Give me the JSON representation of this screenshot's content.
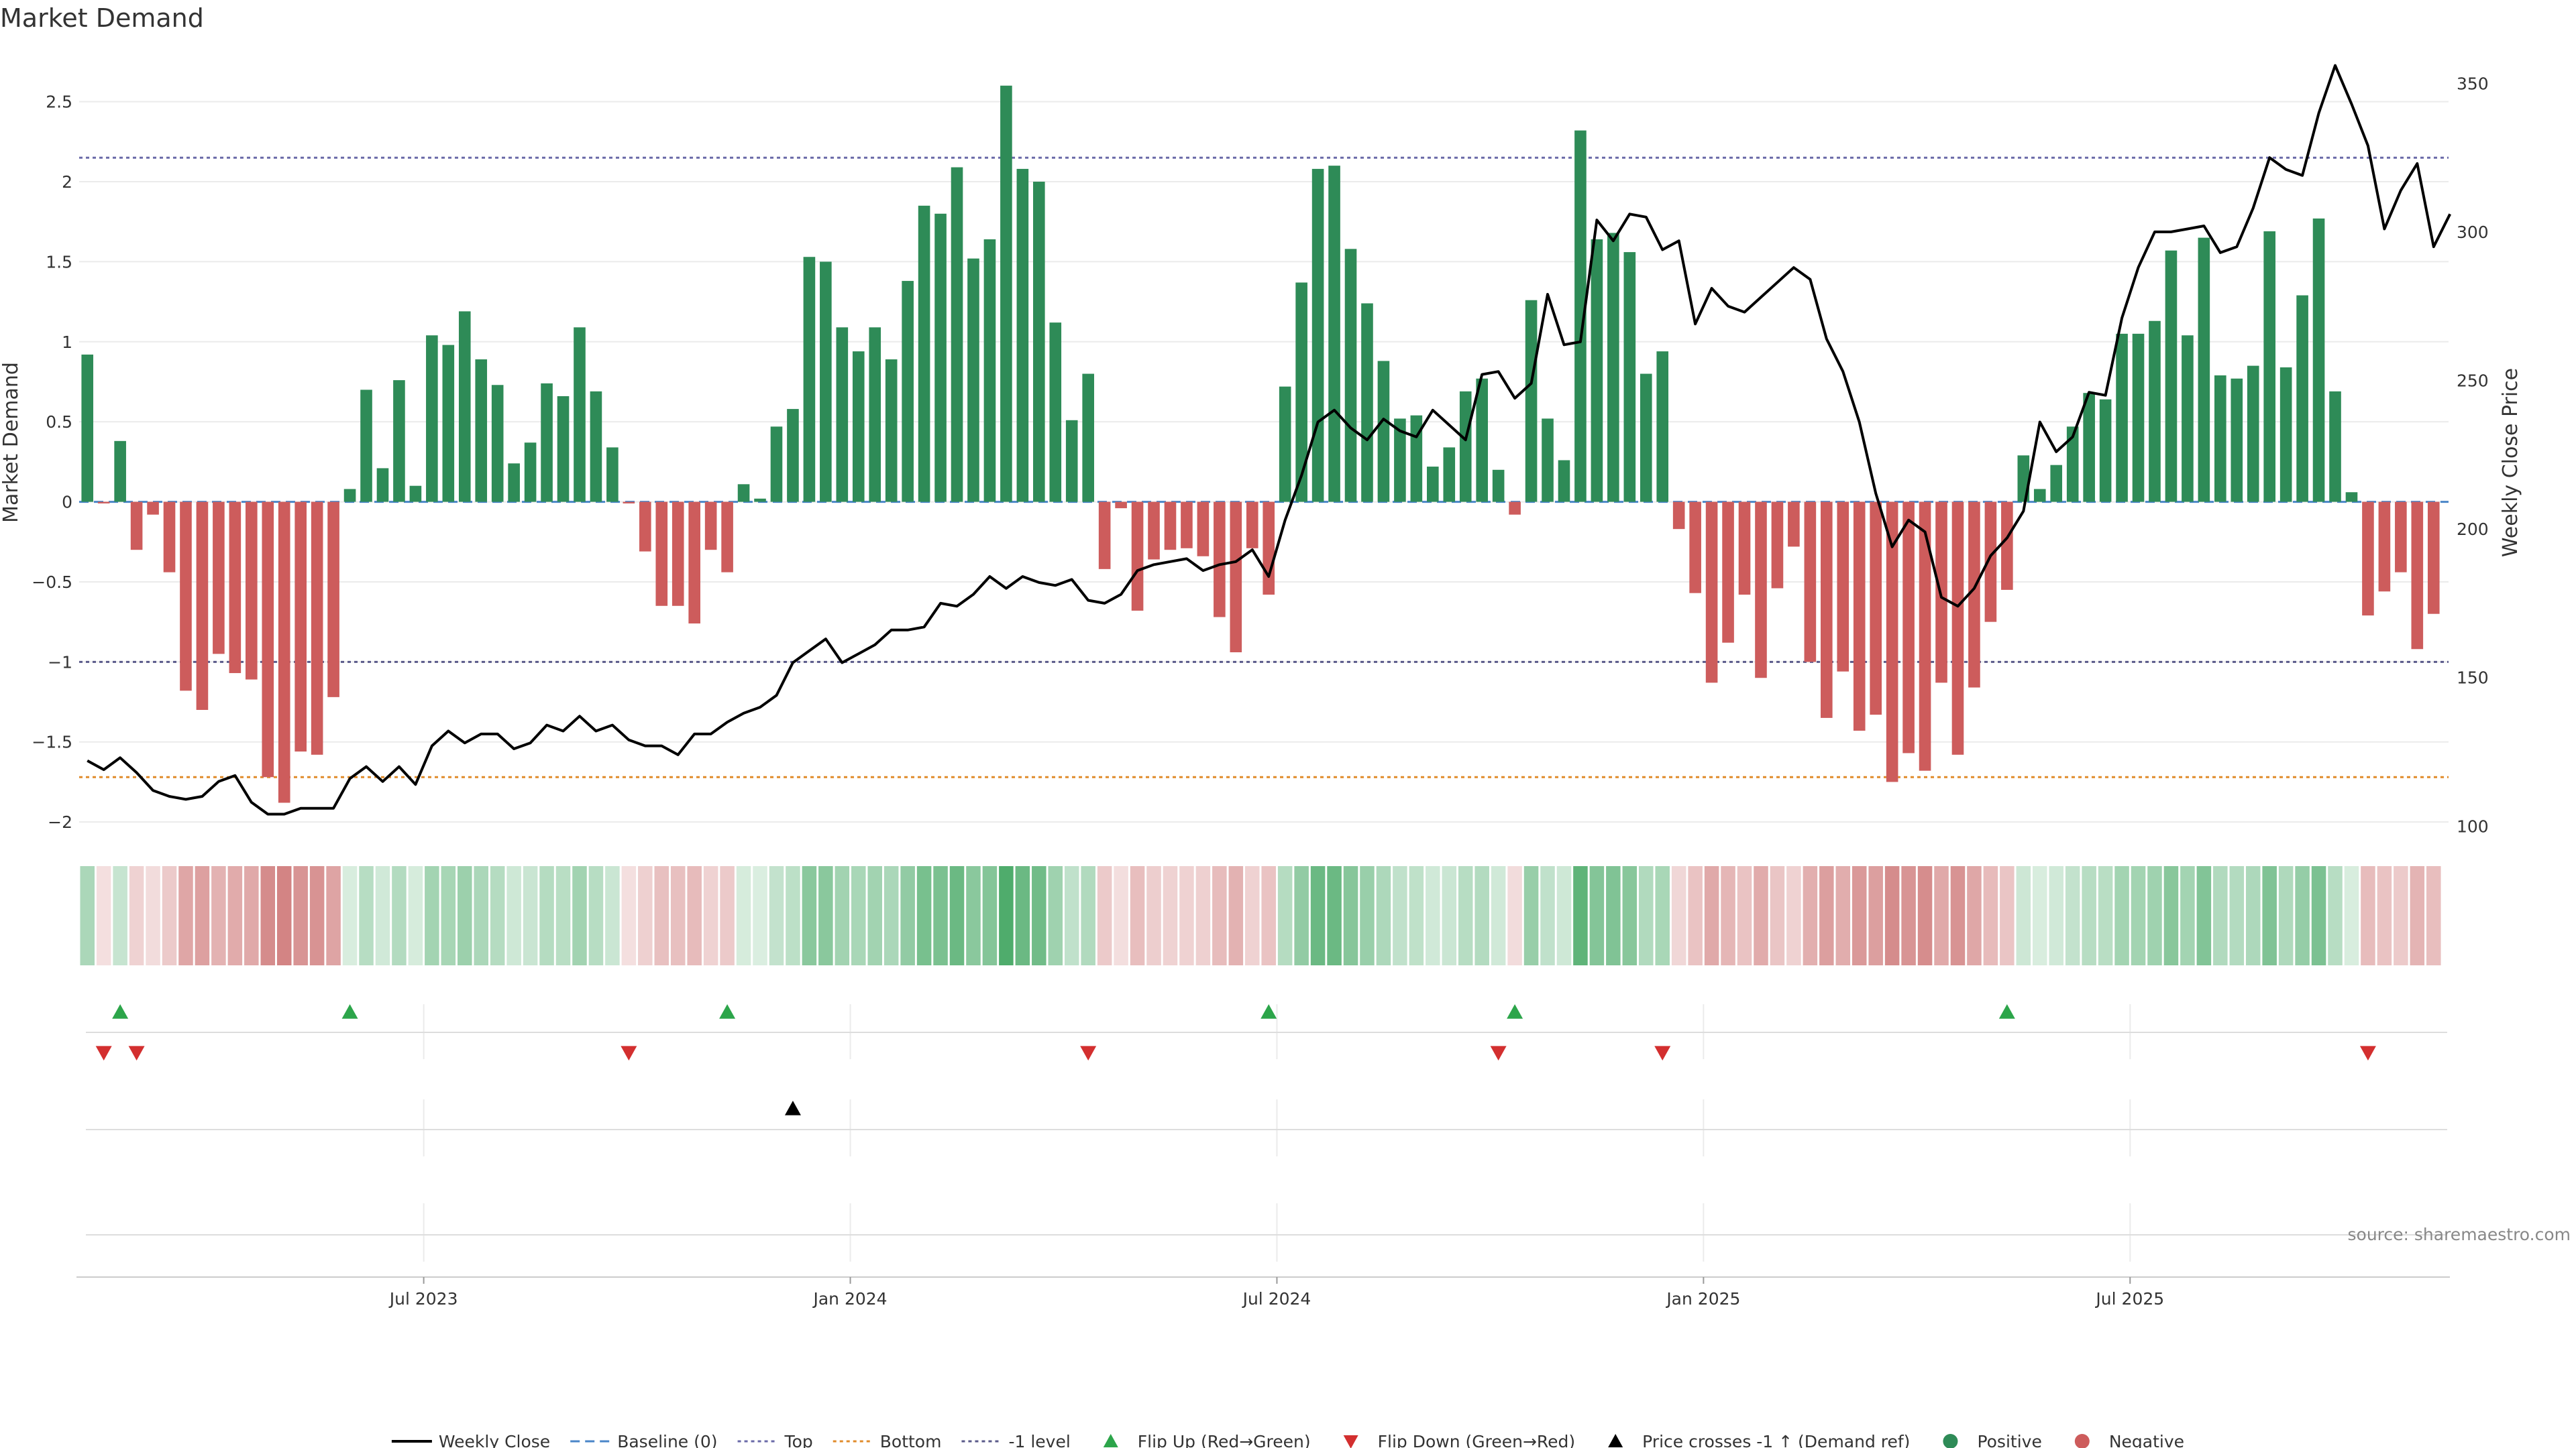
{
  "chart_data": {
    "type": "bar",
    "title": "Market Demand",
    "ylabel": "Market Demand",
    "y2label": "Weekly Close Price",
    "ylim": [
      -2.1,
      2.8
    ],
    "y2lim": [
      96,
      360
    ],
    "yticks": [
      2.5,
      2,
      1.5,
      1,
      0.5,
      0,
      -0.5,
      -1,
      -1.5,
      -2
    ],
    "yticklabels": [
      "2.5",
      "2",
      "1.5",
      "1",
      "0.5",
      "0",
      "−0.5",
      "−1",
      "−1.5",
      "−2"
    ],
    "y2ticks": [
      350,
      300,
      250,
      200,
      150,
      100
    ],
    "xticks": [
      {
        "index": 20.5,
        "label": "Jul 2023"
      },
      {
        "index": 46.5,
        "label": "Jan 2024"
      },
      {
        "index": 72.5,
        "label": "Jul 2024"
      },
      {
        "index": 98.5,
        "label": "Jan 2025"
      },
      {
        "index": 124.5,
        "label": "Jul 2025"
      }
    ],
    "reference_lines": {
      "top": 2.15,
      "bottom": -1.72,
      "minus_one": -1.0,
      "baseline": 0
    },
    "values": [
      0.92,
      -0.01,
      0.38,
      -0.3,
      -0.08,
      -0.44,
      -1.18,
      -1.3,
      -0.95,
      -1.07,
      -1.11,
      -1.72,
      -1.88,
      -1.56,
      -1.58,
      -1.22,
      0.08,
      0.7,
      0.21,
      0.76,
      0.1,
      1.04,
      0.98,
      1.19,
      0.89,
      0.73,
      0.24,
      0.37,
      0.74,
      0.66,
      1.09,
      0.69,
      0.34,
      -0.01,
      -0.31,
      -0.65,
      -0.65,
      -0.76,
      -0.3,
      -0.44,
      0.11,
      0.02,
      0.47,
      0.58,
      1.53,
      1.5,
      1.09,
      0.94,
      1.09,
      0.89,
      1.38,
      1.85,
      1.8,
      2.09,
      1.52,
      1.64,
      2.6,
      2.08,
      2.0,
      1.12,
      0.51,
      0.8,
      -0.42,
      -0.04,
      -0.68,
      -0.36,
      -0.3,
      -0.29,
      -0.34,
      -0.72,
      -0.94,
      -0.29,
      -0.58,
      0.72,
      1.37,
      2.08,
      2.1,
      1.58,
      1.24,
      0.88,
      0.52,
      0.54,
      0.22,
      0.34,
      0.69,
      0.77,
      0.2,
      -0.08,
      1.26,
      0.52,
      0.26,
      2.32,
      1.64,
      1.68,
      1.56,
      0.8,
      0.94,
      -0.17,
      -0.57,
      -1.13,
      -0.88,
      -0.58,
      -1.1,
      -0.54,
      -0.28,
      -1.0,
      -1.35,
      -1.06,
      -1.43,
      -1.33,
      -1.75,
      -1.57,
      -1.68,
      -1.13,
      -1.58,
      -1.16,
      -0.75,
      -0.55,
      0.29,
      0.08,
      0.23,
      0.47,
      0.68,
      0.64,
      1.05,
      1.05,
      1.13,
      1.57,
      1.04,
      1.65,
      0.79,
      0.77,
      0.85,
      1.69,
      0.84,
      1.29,
      1.77,
      0.69,
      0.06,
      -0.71,
      -0.56,
      -0.44,
      -0.92,
      -0.7
    ],
    "weekly_close": [
      122,
      119,
      123,
      118,
      112,
      110,
      109,
      110,
      115,
      117,
      108,
      104,
      104,
      106,
      106,
      106,
      116,
      120,
      115,
      120,
      114,
      127,
      132,
      128,
      131,
      131,
      126,
      128,
      134,
      132,
      137,
      132,
      134,
      129,
      127,
      127,
      124,
      131,
      131,
      135,
      138,
      140,
      144,
      155,
      159,
      163,
      155,
      158,
      161,
      166,
      166,
      167,
      175,
      174,
      178,
      184,
      180,
      184,
      182,
      181,
      183,
      176,
      175,
      178,
      186,
      188,
      189,
      190,
      186,
      188,
      189,
      193,
      184,
      203,
      218,
      236,
      240,
      234,
      230,
      237,
      233,
      231,
      240,
      235,
      230,
      252,
      253,
      244,
      249,
      279,
      262,
      263,
      304,
      297,
      306,
      305,
      294,
      297,
      269,
      281,
      275,
      273,
      278,
      283,
      288,
      284,
      264,
      253,
      236,
      212,
      194,
      203,
      199,
      177,
      174,
      180,
      191,
      197,
      206,
      236,
      226,
      231,
      246,
      245,
      271,
      288,
      300,
      300,
      301,
      302,
      293,
      295,
      308,
      325,
      321,
      319,
      340,
      356,
      343,
      329,
      301,
      314,
      323,
      295,
      306
    ],
    "flip_up_indices": [
      2,
      16,
      39,
      72,
      87,
      117
    ],
    "flip_down_indices": [
      1,
      3,
      33,
      61,
      86,
      96,
      139
    ],
    "cross_up_indices": [
      43
    ],
    "series": [
      {
        "name": "Weekly Close",
        "color": "#000000"
      },
      {
        "name": "Baseline (0)",
        "color": "#4a86c8"
      },
      {
        "name": "Top",
        "color": "#6a6aa8"
      },
      {
        "name": "Bottom",
        "color": "#e08c2c"
      },
      {
        "name": "-1 level",
        "color": "#5a5a8a"
      },
      {
        "name": "Flip Up (Red→Green)",
        "color": "#2ca54a"
      },
      {
        "name": "Flip Down (Green→Red)",
        "color": "#d32f2f"
      },
      {
        "name": "Price crosses -1 ↑ (Demand ref)",
        "color": "#000000"
      },
      {
        "name": "Positive",
        "color": "#2e8b57"
      },
      {
        "name": "Negative",
        "color": "#cd5c5c"
      }
    ]
  },
  "source": "source: sharemaestro.com",
  "colors": {
    "positive_bar": "#2e8b57",
    "negative_bar": "#cd5c5c",
    "strip_positive": "#3ca35c",
    "strip_negative": "#c05050",
    "grid": "#ebebeb"
  }
}
